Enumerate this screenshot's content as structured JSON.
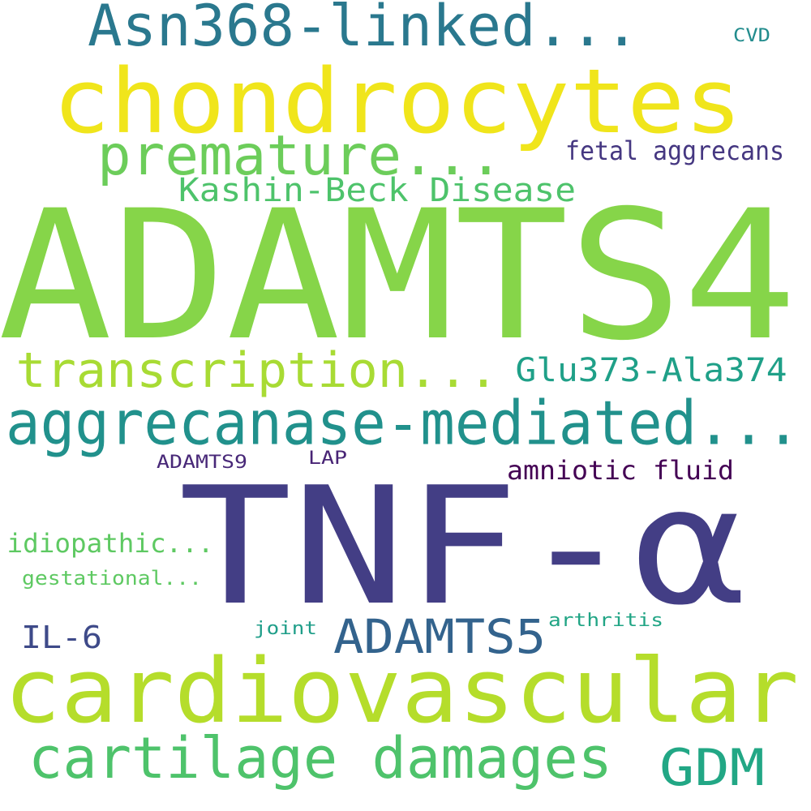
{
  "words": [
    {
      "text": "ADAMTS4",
      "color": "#86d549"
    },
    {
      "text": "TNF-α",
      "color": "#433e85"
    },
    {
      "text": "chondrocytes",
      "color": "#f0e51b"
    },
    {
      "text": "cardiovascular",
      "color": "#b5dd2b"
    },
    {
      "text": "aggrecanase-mediated...",
      "color": "#21918c"
    },
    {
      "text": "Asn368-linked...",
      "color": "#2a788e"
    },
    {
      "text": "cartilage damages",
      "color": "#4ec36b"
    },
    {
      "text": "premature...",
      "color": "#6ccd5a"
    },
    {
      "text": "transcription...",
      "color": "#a8db34"
    },
    {
      "text": "ADAMTS5",
      "color": "#33638d"
    },
    {
      "text": "GDM",
      "color": "#22a785"
    },
    {
      "text": "Kashin-Beck Disease",
      "color": "#4ec36b"
    },
    {
      "text": "Glu373-Ala374",
      "color": "#1fa088"
    },
    {
      "text": "fetal aggrecans",
      "color": "#453781"
    },
    {
      "text": "amniotic fluid",
      "color": "#440154"
    },
    {
      "text": "idiopathic...",
      "color": "#5ec962"
    },
    {
      "text": "IL-6",
      "color": "#3e4a89"
    },
    {
      "text": "gestational...",
      "color": "#5ec962"
    },
    {
      "text": "ADAMTS9",
      "color": "#482878"
    },
    {
      "text": "LAP",
      "color": "#482475"
    },
    {
      "text": "joint",
      "color": "#1f9e89"
    },
    {
      "text": "arthritis",
      "color": "#21a585"
    },
    {
      "text": "CVD",
      "color": "#228c8d"
    }
  ]
}
